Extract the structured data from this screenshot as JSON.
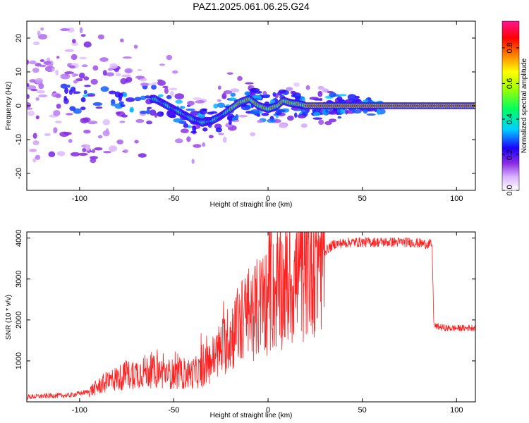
{
  "title": "PAZ1.2025.061.06.25.G24",
  "chart_data": [
    {
      "type": "heatmap",
      "xlabel": "Height of straight line (km)",
      "ylabel": "Frequency (Hz)",
      "xlim": [
        -128,
        110
      ],
      "ylim": [
        -25,
        25
      ],
      "xticks": [
        "-100",
        "-50",
        "0",
        "50",
        "100"
      ],
      "yticks": [
        "20",
        "10",
        "0",
        "-10",
        "-20"
      ],
      "colorbar": {
        "label": "Normalized spectral amplitude",
        "ticks": [
          "0.0",
          "0.2",
          "0.4",
          "0.6",
          "0.8"
        ],
        "range": [
          0,
          0.95
        ]
      },
      "ridge": {
        "x": [
          -60,
          -55,
          -50,
          -45,
          -40,
          -35,
          -30,
          -25,
          -20,
          -15,
          -10,
          -5,
          0,
          5,
          8,
          12,
          16,
          20,
          110
        ],
        "frequency": [
          2,
          0.5,
          -1,
          -2.5,
          -4,
          -5,
          -4.5,
          -3,
          -1,
          1,
          2,
          0,
          -1,
          0,
          1.5,
          0.8,
          0.5,
          0,
          0
        ]
      }
    },
    {
      "type": "line",
      "xlabel": "Height of straight line (km)",
      "ylabel": "SNR (10 * v/v)",
      "xlim": [
        -128,
        110
      ],
      "ylim": [
        0,
        4150
      ],
      "xticks": [
        "-100",
        "-50",
        "0",
        "50",
        "100"
      ],
      "yticks": [
        "4000",
        "3000",
        "2000",
        "1000"
      ],
      "color": "#ff2020",
      "series": [
        {
          "x": [
            -128,
            -115,
            -105,
            -95,
            -85,
            -75,
            -65,
            -55,
            -45,
            -35,
            -25,
            -15,
            -5,
            5,
            15,
            25,
            35,
            45,
            55,
            65,
            75,
            85,
            87,
            88,
            95,
            105,
            110
          ],
          "y": [
            120,
            150,
            160,
            250,
            500,
            650,
            750,
            700,
            650,
            750,
            1300,
            1900,
            2300,
            2700,
            3000,
            3500,
            3850,
            3900,
            3900,
            3900,
            3900,
            3850,
            3850,
            1850,
            1800,
            1800,
            1820
          ]
        }
      ]
    }
  ]
}
